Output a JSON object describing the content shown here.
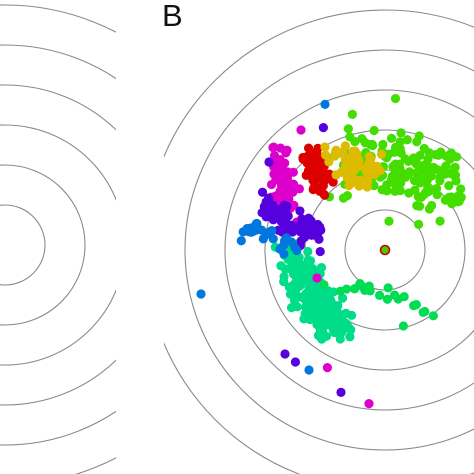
{
  "panel": {
    "label": "B"
  },
  "chart_data": {
    "type": "scatter",
    "title": "",
    "xlabel": "",
    "ylabel": "",
    "grid": false,
    "legend": "none",
    "xlim": [
      -2.6,
      1.2
    ],
    "ylim": [
      -2.2,
      2.0
    ],
    "rings": [
      0.5,
      1.0,
      1.5,
      2.0,
      2.5,
      3.0
    ],
    "center_marker": {
      "x": 0.0,
      "y": 0.0,
      "fill": "#44cc00",
      "edge": "#cc0000"
    },
    "clusters": [
      {
        "color": "#44dd00",
        "x": [
          -0.55,
          -0.2,
          0.2,
          0.55,
          0.9
        ],
        "y": [
          1.2,
          1.1,
          1.05,
          0.9,
          0.8
        ],
        "spread": [
          0.12,
          0.22
        ],
        "n": 170
      },
      {
        "color": "#00dd88",
        "x": [
          -1.2,
          -1.0,
          -0.85,
          -0.75,
          -0.55
        ],
        "y": [
          -0.05,
          -0.35,
          -0.65,
          -0.85,
          -0.95
        ],
        "spread": [
          0.1,
          0.1
        ],
        "n": 200
      },
      {
        "color": "#dd0000",
        "x": [
          -0.95,
          -0.75
        ],
        "y": [
          1.1,
          0.9
        ],
        "spread": [
          0.07,
          0.13
        ],
        "n": 55
      },
      {
        "color": "#ddbb00",
        "x": [
          -0.55,
          -0.3
        ],
        "y": [
          1.15,
          1.0
        ],
        "spread": [
          0.12,
          0.12
        ],
        "n": 60
      },
      {
        "color": "#dd00cc",
        "x": [
          -1.35,
          -1.28,
          -1.25
        ],
        "y": [
          1.2,
          0.85,
          0.55
        ],
        "spread": [
          0.08,
          0.11
        ],
        "n": 75
      },
      {
        "color": "#5500dd",
        "x": [
          -1.55,
          -1.35,
          -1.1,
          -0.85
        ],
        "y": [
          0.55,
          0.45,
          0.3,
          0.2
        ],
        "spread": [
          0.06,
          0.08
        ],
        "n": 75
      },
      {
        "color": "#0077dd",
        "x": [
          -1.75,
          -1.6,
          -1.35,
          -1.2
        ],
        "y": [
          0.2,
          0.3,
          0.1,
          0.05
        ],
        "spread": [
          0.06,
          0.05
        ],
        "n": 30
      },
      {
        "color": "#00dd55",
        "x": [
          -0.7,
          -0.2,
          0.3,
          0.55
        ],
        "y": [
          -0.45,
          -0.5,
          -0.6,
          -0.85
        ],
        "spread": [
          0.06,
          0.05
        ],
        "n": 22
      }
    ],
    "points": [
      {
        "x": -0.75,
        "y": 1.82,
        "color": "#0077dd"
      },
      {
        "x": -0.77,
        "y": 1.53,
        "color": "#5500dd"
      },
      {
        "x": -2.3,
        "y": -0.55,
        "color": "#0077dd"
      },
      {
        "x": -1.25,
        "y": -1.3,
        "color": "#5500dd"
      },
      {
        "x": -1.12,
        "y": -1.4,
        "color": "#5500dd"
      },
      {
        "x": -0.95,
        "y": -1.5,
        "color": "#0077dd"
      },
      {
        "x": -0.72,
        "y": -1.47,
        "color": "#dd00cc"
      },
      {
        "x": -0.55,
        "y": -1.78,
        "color": "#5500dd"
      },
      {
        "x": -0.2,
        "y": -1.92,
        "color": "#dd00cc"
      },
      {
        "x": -0.78,
        "y": -1.05,
        "color": "#00dd88"
      },
      {
        "x": 0.23,
        "y": -0.95,
        "color": "#00dd55"
      },
      {
        "x": 0.42,
        "y": 0.32,
        "color": "#44dd00"
      },
      {
        "x": 0.05,
        "y": 0.36,
        "color": "#44dd00"
      },
      {
        "x": -0.85,
        "y": -0.35,
        "color": "#dd00cc"
      },
      {
        "x": -1.05,
        "y": 1.5,
        "color": "#dd00cc"
      },
      {
        "x": -1.45,
        "y": 1.1,
        "color": "#5500dd"
      }
    ]
  }
}
